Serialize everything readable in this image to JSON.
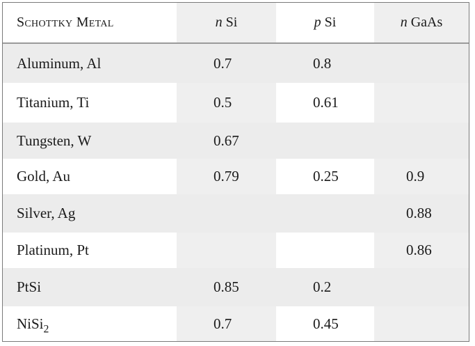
{
  "headers": {
    "metal": "Schottky Metal",
    "col1_italic": "n",
    "col1_rest": " Si",
    "col2_italic": "p",
    "col2_rest": " Si",
    "col3_italic": "n",
    "col3_rest": " GaAs"
  },
  "rows": [
    {
      "metal": "Aluminum, Al",
      "n_si": "0.7",
      "p_si": "0.8",
      "n_gaas": ""
    },
    {
      "metal": "Titanium, Ti",
      "n_si": "0.5",
      "p_si": "0.61",
      "n_gaas": ""
    },
    {
      "metal": "Tungsten, W",
      "n_si": "0.67",
      "p_si": "",
      "n_gaas": ""
    },
    {
      "metal": "Gold, Au",
      "n_si": "0.79",
      "p_si": "0.25",
      "n_gaas": "0.9"
    },
    {
      "metal": "Silver, Ag",
      "n_si": "",
      "p_si": "",
      "n_gaas": "0.88"
    },
    {
      "metal": "Platinum, Pt",
      "n_si": "",
      "p_si": "",
      "n_gaas": "0.86"
    },
    {
      "metal": "PtSi",
      "n_si": "0.85",
      "p_si": "0.2",
      "n_gaas": ""
    },
    {
      "metal": "NiSi",
      "metal_sub": "2",
      "n_si": "0.7",
      "p_si": "0.45",
      "n_gaas": ""
    }
  ],
  "colors": {
    "shade": "#ececec",
    "border": "#7a7a7a",
    "header_rule": "#9a9a9a",
    "text": "#1a1a1a"
  }
}
